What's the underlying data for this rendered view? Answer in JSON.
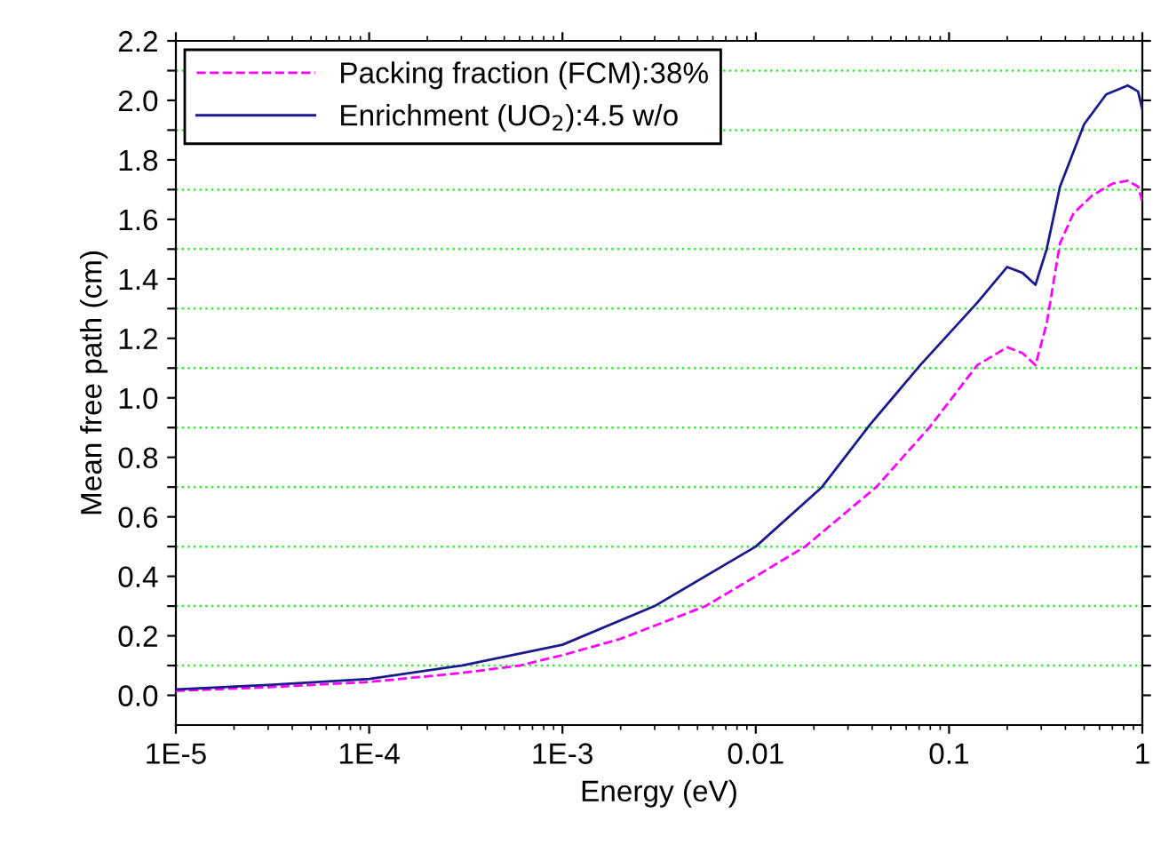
{
  "chart_data": {
    "type": "line",
    "xlabel": "Energy (eV)",
    "ylabel": "Mean free path (cm)",
    "log": "x",
    "xlim": [
      1e-05,
      1
    ],
    "xticks": [
      {
        "value": 1e-05,
        "label": "1E-5"
      },
      {
        "value": 0.0001,
        "label": "1E-4"
      },
      {
        "value": 0.001,
        "label": "1E-3"
      },
      0.01,
      0.1,
      1
    ],
    "ylim": [
      -0.1,
      2.2
    ],
    "yticks": [
      {
        "value": 0,
        "label": "0.0"
      },
      {
        "value": 0.1,
        "label": null
      },
      0.2,
      {
        "value": 0.3,
        "label": null
      },
      0.4,
      {
        "value": 0.5,
        "label": null
      },
      0.6,
      {
        "value": 0.7,
        "label": null
      },
      0.8,
      {
        "value": 0.9,
        "label": null
      },
      {
        "value": 1.0,
        "label": "1.0"
      },
      {
        "value": 1.1,
        "label": null
      },
      1.2,
      {
        "value": 1.3,
        "label": null
      },
      1.4,
      {
        "value": 1.5,
        "label": null
      },
      1.6,
      {
        "value": 1.7,
        "label": null
      },
      1.8,
      {
        "value": 1.9,
        "label": null
      },
      {
        "value": 2.0,
        "label": "2.0"
      },
      {
        "value": 2.1,
        "label": null
      },
      2.2
    ],
    "ref_lines": [
      {
        "axis": "y",
        "value": 0.1,
        "color": "#33ee33",
        "line_style": "dotted"
      },
      {
        "axis": "y",
        "value": 0.3,
        "color": "#33ee33",
        "line_style": "dotted"
      },
      {
        "axis": "y",
        "value": 0.5,
        "color": "#33ee33",
        "line_style": "dotted"
      },
      {
        "axis": "y",
        "value": 0.7,
        "color": "#33ee33",
        "line_style": "dotted"
      },
      {
        "axis": "y",
        "value": 0.9,
        "color": "#33ee33",
        "line_style": "dotted"
      },
      {
        "axis": "y",
        "value": 1.1,
        "color": "#33ee33",
        "line_style": "dotted"
      },
      {
        "axis": "y",
        "value": 1.3,
        "color": "#33ee33",
        "line_style": "dotted"
      },
      {
        "axis": "y",
        "value": 1.5,
        "color": "#33ee33",
        "line_style": "dotted"
      },
      {
        "axis": "y",
        "value": 1.7,
        "color": "#33ee33",
        "line_style": "dotted"
      },
      {
        "axis": "y",
        "value": 1.9,
        "color": "#33ee33",
        "line_style": "dotted"
      },
      {
        "axis": "y",
        "value": 2.1,
        "color": "#33ee33",
        "line_style": "dotted"
      }
    ],
    "legend": "top left",
    "series": [
      {
        "name": "Packing fraction (FCM):38%",
        "color": "#ff00ff",
        "line_style": "dashed",
        "x": [
          1e-05,
          3e-05,
          0.0001,
          0.0003,
          0.0006,
          0.001,
          0.002,
          0.0055,
          0.01,
          0.018,
          0.042,
          0.079,
          0.14,
          0.2,
          0.24,
          0.28,
          0.32,
          0.375,
          0.44,
          0.55,
          0.7,
          0.84,
          0.95,
          1
        ],
        "values": [
          0.015,
          0.027,
          0.045,
          0.075,
          0.1,
          0.135,
          0.19,
          0.3,
          0.4,
          0.5,
          0.7,
          0.9,
          1.11,
          1.17,
          1.15,
          1.11,
          1.25,
          1.52,
          1.62,
          1.68,
          1.72,
          1.73,
          1.71,
          1.66
        ]
      },
      {
        "name": "Enrichment (UO$_{2}$):4.5 w/o",
        "color": "#1a1a8c",
        "line_style": "solid",
        "x": [
          1e-05,
          3e-05,
          0.0001,
          0.0003,
          0.001,
          0.003,
          0.01,
          0.022,
          0.039,
          0.071,
          0.14,
          0.2,
          0.24,
          0.28,
          0.32,
          0.375,
          0.5,
          0.65,
          0.84,
          0.95,
          1
        ],
        "values": [
          0.02,
          0.035,
          0.055,
          0.1,
          0.17,
          0.3,
          0.5,
          0.7,
          0.91,
          1.11,
          1.32,
          1.44,
          1.42,
          1.38,
          1.5,
          1.71,
          1.92,
          2.02,
          2.05,
          2.03,
          1.97
        ]
      }
    ]
  }
}
